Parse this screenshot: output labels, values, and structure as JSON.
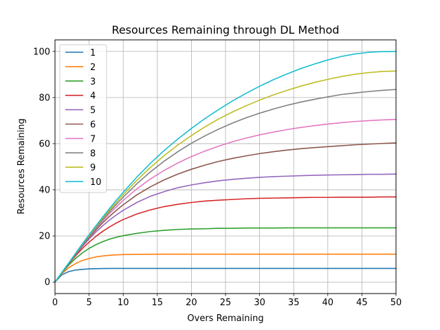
{
  "chart_data": {
    "type": "line",
    "title": "Resources Remaining through DL Method",
    "xlabel": "Overs Remaining",
    "ylabel": "Resources Remaining",
    "xlim": [
      0,
      50
    ],
    "ylim": [
      -5,
      105
    ],
    "xticks": [
      0,
      5,
      10,
      15,
      20,
      25,
      30,
      35,
      40,
      45,
      50
    ],
    "yticks": [
      0,
      20,
      40,
      60,
      80,
      100
    ],
    "grid": true,
    "legend_position": "top-left",
    "x": [
      0,
      1,
      2,
      3,
      4,
      5,
      6,
      7,
      8,
      9,
      10,
      12,
      14,
      16,
      18,
      20,
      22,
      24,
      26,
      28,
      30,
      32,
      34,
      36,
      38,
      40,
      42,
      44,
      46,
      48,
      50
    ],
    "series": [
      {
        "name": "1",
        "color": "#1f77b4",
        "values": [
          0.0,
          3.1,
          4.5,
          5.2,
          5.5,
          5.7,
          5.8,
          5.85,
          5.9,
          5.9,
          5.9,
          5.9,
          5.9,
          5.9,
          5.9,
          5.9,
          5.9,
          5.9,
          5.9,
          5.9,
          5.9,
          5.9,
          5.9,
          5.9,
          5.9,
          5.9,
          5.9,
          5.9,
          5.9,
          5.9,
          5.9
        ]
      },
      {
        "name": "2",
        "color": "#ff7f0e",
        "values": [
          0.0,
          3.6,
          6.2,
          8.0,
          9.3,
          10.2,
          10.9,
          11.3,
          11.6,
          11.8,
          11.9,
          12.0,
          12.05,
          12.1,
          12.1,
          12.1,
          12.1,
          12.1,
          12.1,
          12.1,
          12.1,
          12.1,
          12.1,
          12.1,
          12.1,
          12.1,
          12.1,
          12.1,
          12.1,
          12.1,
          12.1
        ]
      },
      {
        "name": "3",
        "color": "#2ca02c",
        "values": [
          0.0,
          3.9,
          7.3,
          10.2,
          12.6,
          14.6,
          16.2,
          17.5,
          18.6,
          19.4,
          20.1,
          21.1,
          21.9,
          22.4,
          22.8,
          23.0,
          23.1,
          23.3,
          23.3,
          23.4,
          23.4,
          23.4,
          23.5,
          23.5,
          23.5,
          23.5,
          23.5,
          23.5,
          23.5,
          23.5,
          23.5
        ]
      },
      {
        "name": "4",
        "color": "#d62728",
        "values": [
          0.0,
          4.0,
          7.8,
          11.3,
          14.5,
          17.3,
          19.8,
          22.0,
          23.9,
          25.6,
          27.1,
          29.5,
          31.3,
          32.7,
          33.7,
          34.5,
          35.1,
          35.5,
          35.8,
          36.1,
          36.3,
          36.4,
          36.5,
          36.6,
          36.7,
          36.7,
          36.8,
          36.8,
          36.8,
          36.9,
          36.9
        ]
      },
      {
        "name": "5",
        "color": "#9467bd",
        "values": [
          0.0,
          4.0,
          8.0,
          11.8,
          15.4,
          18.7,
          21.7,
          24.4,
          26.9,
          29.1,
          31.1,
          34.5,
          37.2,
          39.2,
          40.9,
          42.1,
          43.1,
          43.9,
          44.5,
          45.0,
          45.4,
          45.7,
          45.9,
          46.1,
          46.3,
          46.4,
          46.5,
          46.6,
          46.7,
          46.7,
          46.8
        ]
      },
      {
        "name": "6",
        "color": "#8c564b",
        "values": [
          0.0,
          4.1,
          8.1,
          12.0,
          15.8,
          19.3,
          22.6,
          25.7,
          28.5,
          31.1,
          33.5,
          37.8,
          41.3,
          44.3,
          46.8,
          48.9,
          50.7,
          52.3,
          53.6,
          54.7,
          55.7,
          56.5,
          57.2,
          57.8,
          58.3,
          58.7,
          59.1,
          59.5,
          59.8,
          60.1,
          60.3
        ]
      },
      {
        "name": "7",
        "color": "#e377c2",
        "values": [
          0.0,
          4.1,
          8.1,
          12.1,
          16.0,
          19.7,
          23.2,
          26.5,
          29.7,
          32.6,
          35.4,
          40.4,
          44.7,
          48.4,
          51.6,
          54.4,
          56.8,
          58.9,
          60.8,
          62.4,
          63.8,
          65.0,
          66.1,
          67.0,
          67.8,
          68.5,
          69.1,
          69.6,
          70.0,
          70.3,
          70.5
        ]
      },
      {
        "name": "8",
        "color": "#7f7f7f",
        "values": [
          0.0,
          4.1,
          8.2,
          12.2,
          16.1,
          19.9,
          23.6,
          27.1,
          30.5,
          33.7,
          36.8,
          42.6,
          47.8,
          52.4,
          56.5,
          60.2,
          63.4,
          66.3,
          68.9,
          71.2,
          73.2,
          75.0,
          76.6,
          78.0,
          79.2,
          80.3,
          81.3,
          82.0,
          82.6,
          83.1,
          83.5
        ]
      },
      {
        "name": "9",
        "color": "#bcbd22",
        "values": [
          0.0,
          4.1,
          8.2,
          12.3,
          16.3,
          20.2,
          24.0,
          27.7,
          31.2,
          34.6,
          37.9,
          44.1,
          49.7,
          54.8,
          59.4,
          63.5,
          67.3,
          70.7,
          73.7,
          76.4,
          78.9,
          81.1,
          83.1,
          84.9,
          86.5,
          87.9,
          89.1,
          90.1,
          90.8,
          91.3,
          91.5
        ]
      },
      {
        "name": "10",
        "color": "#17becf",
        "values": [
          0.0,
          4.1,
          8.2,
          12.4,
          16.5,
          20.5,
          24.4,
          28.2,
          31.9,
          35.5,
          38.9,
          45.5,
          51.5,
          57.0,
          62.0,
          66.6,
          70.9,
          74.8,
          78.5,
          81.8,
          84.9,
          87.7,
          90.2,
          92.5,
          94.5,
          96.3,
          97.8,
          98.9,
          99.6,
          99.9,
          100.0
        ]
      }
    ]
  }
}
